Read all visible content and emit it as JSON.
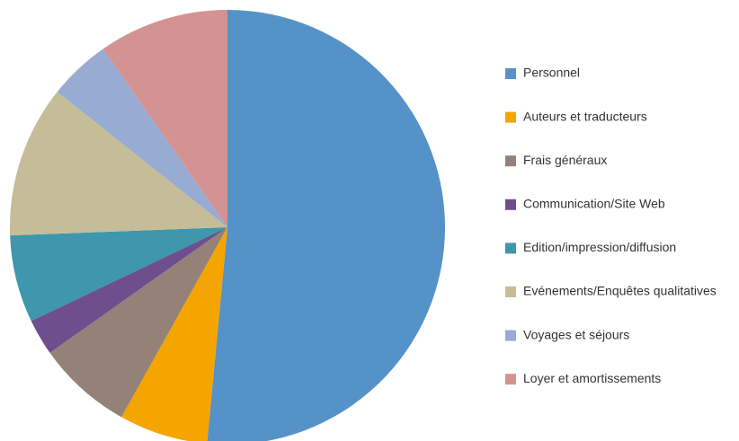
{
  "chart_data": {
    "type": "pie",
    "categories": [
      "Personnel",
      "Auteurs et traducteurs",
      "Frais généraux",
      "Communication/Site Web",
      "Edition/impression/diffusion",
      "Evénements/Enquêtes qualitatives",
      "Voyages et séjours",
      "Loyer et amortissements"
    ],
    "values": [
      51.5,
      6.6,
      7.1,
      2.7,
      6.5,
      11.3,
      4.6,
      9.7
    ],
    "colors": [
      "#5592c8",
      "#f5a500",
      "#948279",
      "#6e4e8c",
      "#3e97ac",
      "#c5bd98",
      "#97abd3",
      "#d39393"
    ],
    "legend": "right"
  }
}
